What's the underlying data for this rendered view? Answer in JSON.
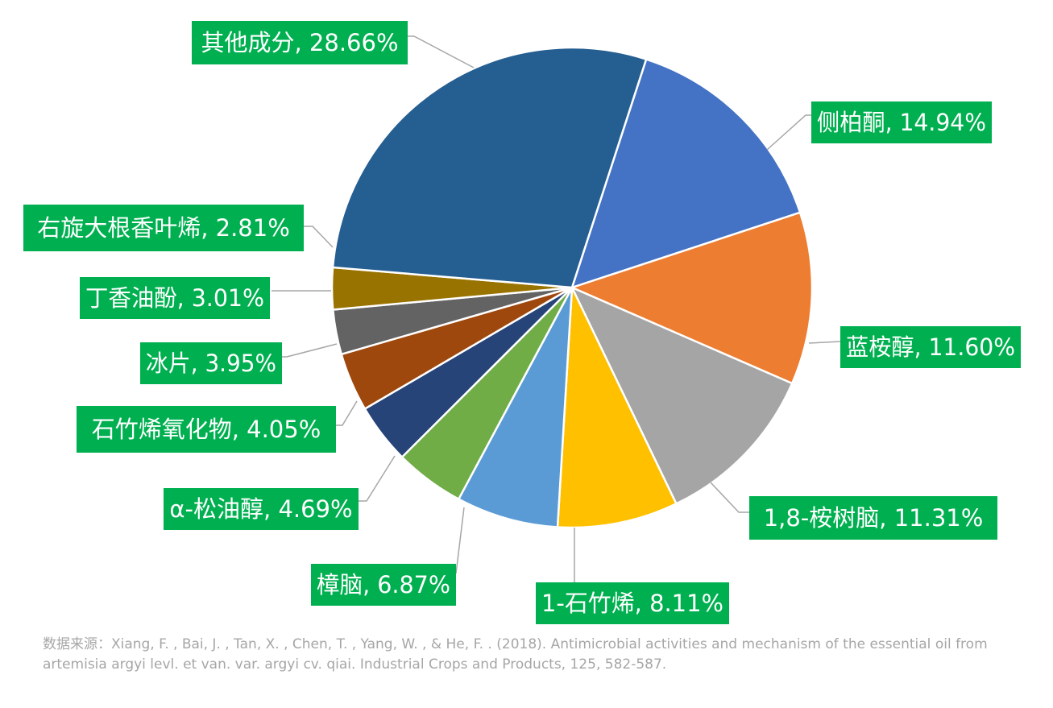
{
  "chart_data": {
    "type": "pie",
    "start_angle_deg": 18,
    "direction": "clockwise",
    "slices": [
      {
        "label": "侧柏酮, 14.94%",
        "name": "侧柏酮",
        "value": 14.94,
        "color": "#4472c4"
      },
      {
        "label": "蓝桉醇, 11.60%",
        "name": "蓝桉醇",
        "value": 11.6,
        "color": "#ed7d31"
      },
      {
        "label": "1,8-桉树脑, 11.31%",
        "name": "1,8-桉树脑",
        "value": 11.31,
        "color": "#a5a5a5"
      },
      {
        "label": "1-石竹烯, 8.11%",
        "name": "1-石竹烯",
        "value": 8.11,
        "color": "#ffc000"
      },
      {
        "label": "樟脑, 6.87%",
        "name": "樟脑",
        "value": 6.87,
        "color": "#5b9bd5"
      },
      {
        "label": "α-松油醇, 4.69%",
        "name": "α-松油醇",
        "value": 4.69,
        "color": "#70ad47"
      },
      {
        "label": "石竹烯氧化物, 4.05%",
        "name": "石竹烯氧化物",
        "value": 4.05,
        "color": "#264478"
      },
      {
        "label": "冰片, 3.95%",
        "name": "冰片",
        "value": 3.95,
        "color": "#9e480e"
      },
      {
        "label": "丁香油酚, 3.01%",
        "name": "丁香油酚",
        "value": 3.01,
        "color": "#636363"
      },
      {
        "label": "右旋大根香叶烯, 2.81%",
        "name": "右旋大根香叶烯",
        "value": 2.81,
        "color": "#997300"
      },
      {
        "label": "其他成分, 28.66%",
        "name": "其他成分",
        "value": 28.66,
        "color": "#255e91"
      }
    ],
    "label_style": {
      "background": "#00b050",
      "text_color": "#ffffff"
    }
  },
  "source_note": "数据来源：Xiang, F. , Bai, J. , Tan, X. , Chen, T. , Yang, W. , & He, F. . (2018). Antimicrobial activities and mechanism of the essential oil from artemisia argyi levl. et van. var. argyi cv. qiai. Industrial Crops and Products, 125, 582-587."
}
